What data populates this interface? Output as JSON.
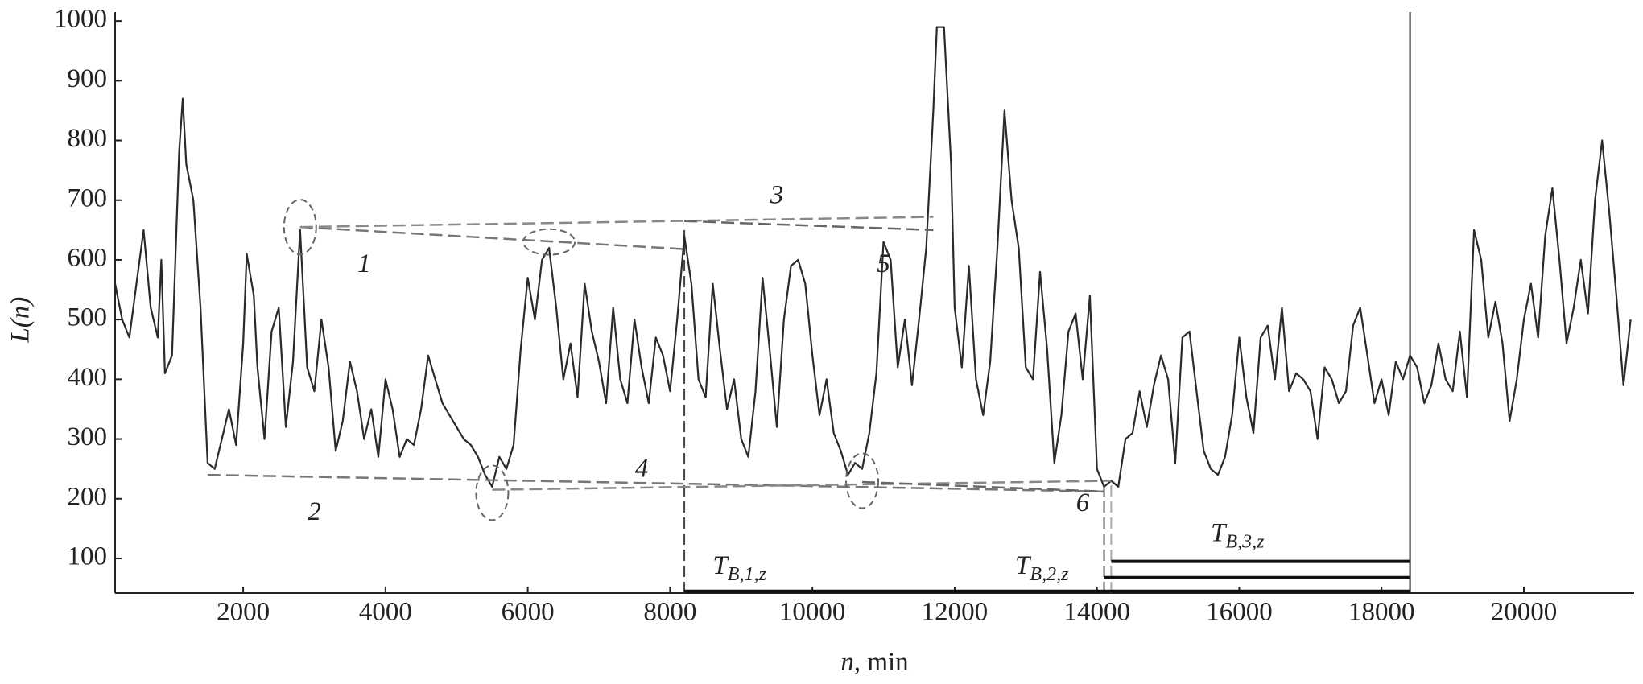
{
  "chart_data": {
    "type": "line",
    "color": "#2a2a2a",
    "xlabel_var": "n",
    "xlabel_unit": ", min",
    "ylabel": "L(n)",
    "xlim": [
      200,
      21550
    ],
    "ylim": [
      42,
      1015
    ],
    "xticks": [
      2000,
      4000,
      6000,
      8000,
      10000,
      12000,
      14000,
      16000,
      18000,
      20000
    ],
    "yticks": [
      100,
      200,
      300,
      400,
      500,
      600,
      700,
      800,
      900,
      1000
    ],
    "grid": false,
    "x": [
      200,
      300,
      400,
      500,
      600,
      700,
      800,
      850,
      900,
      1000,
      1100,
      1150,
      1200,
      1300,
      1400,
      1500,
      1600,
      1700,
      1800,
      1900,
      2000,
      2050,
      2150,
      2200,
      2300,
      2400,
      2500,
      2600,
      2700,
      2800,
      2900,
      3000,
      3100,
      3200,
      3300,
      3400,
      3500,
      3600,
      3700,
      3800,
      3900,
      4000,
      4100,
      4200,
      4300,
      4400,
      4500,
      4600,
      4700,
      4800,
      4900,
      5000,
      5100,
      5200,
      5300,
      5400,
      5500,
      5600,
      5700,
      5800,
      5900,
      6000,
      6100,
      6200,
      6300,
      6400,
      6500,
      6600,
      6700,
      6800,
      6900,
      7000,
      7100,
      7200,
      7300,
      7400,
      7500,
      7600,
      7700,
      7800,
      7900,
      8000,
      8100,
      8200,
      8300,
      8400,
      8500,
      8600,
      8700,
      8800,
      8900,
      9000,
      9100,
      9200,
      9300,
      9400,
      9500,
      9600,
      9700,
      9800,
      9900,
      10000,
      10100,
      10200,
      10300,
      10400,
      10500,
      10600,
      10700,
      10800,
      10900,
      11000,
      11100,
      11200,
      11300,
      11400,
      11500,
      11600,
      11700,
      11750,
      11850,
      11950,
      12000,
      12100,
      12200,
      12300,
      12400,
      12500,
      12600,
      12700,
      12800,
      12900,
      13000,
      13100,
      13200,
      13300,
      13400,
      13500,
      13600,
      13700,
      13800,
      13900,
      14000,
      14100,
      14200,
      14300,
      14400,
      14500,
      14600,
      14700,
      14800,
      14900,
      15000,
      15100,
      15200,
      15300,
      15400,
      15500,
      15600,
      15700,
      15800,
      15900,
      16000,
      16100,
      16200,
      16300,
      16400,
      16500,
      16600,
      16700,
      16800,
      16900,
      17000,
      17100,
      17200,
      17300,
      17400,
      17500,
      17600,
      17700,
      17800,
      17900,
      18000,
      18100,
      18200,
      18300,
      18400,
      18500,
      18600,
      18700,
      18800,
      18900,
      19000,
      19100,
      19200,
      19300,
      19400,
      19500,
      19600,
      19700,
      19800,
      19900,
      20000,
      20100,
      20200,
      20300,
      20400,
      20500,
      20600,
      20700,
      20800,
      20900,
      21000,
      21100,
      21200,
      21300,
      21400,
      21500
    ],
    "values": [
      560,
      500,
      470,
      560,
      650,
      520,
      470,
      600,
      410,
      440,
      780,
      870,
      760,
      700,
      520,
      260,
      250,
      300,
      350,
      290,
      460,
      610,
      540,
      420,
      300,
      480,
      520,
      320,
      430,
      650,
      420,
      380,
      500,
      420,
      280,
      330,
      430,
      380,
      300,
      350,
      270,
      400,
      350,
      270,
      300,
      290,
      350,
      440,
      400,
      360,
      340,
      320,
      300,
      290,
      270,
      240,
      220,
      270,
      250,
      290,
      450,
      570,
      500,
      600,
      620,
      520,
      400,
      460,
      370,
      560,
      480,
      430,
      360,
      520,
      400,
      360,
      500,
      420,
      360,
      470,
      440,
      380,
      500,
      640,
      560,
      400,
      370,
      560,
      450,
      350,
      400,
      300,
      270,
      380,
      570,
      450,
      320,
      500,
      590,
      600,
      560,
      440,
      340,
      400,
      310,
      280,
      240,
      260,
      250,
      310,
      410,
      630,
      600,
      420,
      500,
      390,
      500,
      620,
      850,
      990,
      990,
      760,
      520,
      420,
      590,
      400,
      340,
      430,
      620,
      850,
      700,
      620,
      420,
      400,
      580,
      450,
      260,
      340,
      480,
      510,
      400,
      540,
      250,
      220,
      230,
      220,
      300,
      310,
      380,
      320,
      390,
      440,
      400,
      260,
      470,
      480,
      380,
      280,
      250,
      240,
      270,
      340,
      470,
      370,
      310,
      470,
      490,
      400,
      520,
      380,
      410,
      400,
      380,
      300,
      420,
      400,
      360,
      380,
      490,
      520,
      440,
      360,
      400,
      340,
      430,
      400,
      440,
      420,
      360,
      390,
      460,
      400,
      380,
      480,
      370,
      650,
      600,
      470,
      530,
      460,
      330,
      400,
      500,
      560,
      470,
      640,
      720,
      600,
      460,
      520,
      600,
      510,
      700,
      800,
      680,
      540,
      390,
      500
    ],
    "dashed_lines": [
      {
        "label": "1",
        "x": [
          2800,
          8200
        ],
        "y": [
          655,
          618
        ],
        "label_x": 3700,
        "label_y": 590,
        "color": "#777"
      },
      {
        "label": "3",
        "x": [
          2800,
          11700
        ],
        "y": [
          655,
          672
        ],
        "label_x": 9500,
        "label_y": 705,
        "color": "#888"
      },
      {
        "label": "5",
        "x": [
          8200,
          11700
        ],
        "y": [
          665,
          650
        ],
        "label_x": 11000,
        "label_y": 590,
        "color": "#666"
      },
      {
        "label": "2",
        "x": [
          1500,
          14100
        ],
        "y": [
          240,
          212
        ],
        "label_x": 3000,
        "label_y": 175,
        "color": "#777"
      },
      {
        "label": "4",
        "x": [
          5500,
          14200
        ],
        "y": [
          215,
          230
        ],
        "label_x": 7600,
        "label_y": 247,
        "color": "#888"
      },
      {
        "label": "6",
        "x": [
          10700,
          14100
        ],
        "y": [
          228,
          212
        ],
        "label_x": 13800,
        "label_y": 190,
        "color": "#666"
      }
    ],
    "ellipses": [
      {
        "x": 2800,
        "y": 655,
        "orientation": "vertical"
      },
      {
        "x": 6300,
        "y": 630,
        "orientation": "horizontal"
      },
      {
        "x": 5500,
        "y": 210,
        "orientation": "vertical"
      },
      {
        "x": 10700,
        "y": 230,
        "orientation": "vertical"
      }
    ],
    "verticals": [
      {
        "x": 8200,
        "y": [
          42,
          650
        ],
        "style": "dashed",
        "color": "#444"
      },
      {
        "x": 14100,
        "y": [
          42,
          230
        ],
        "style": "dashed",
        "color": "#555"
      },
      {
        "x": 14200,
        "y": [
          42,
          225
        ],
        "style": "dashed",
        "color": "#aaa"
      },
      {
        "x": 18400,
        "y": [
          42,
          1015
        ],
        "style": "solid",
        "color": "#222"
      }
    ],
    "intervals": [
      {
        "main": "T",
        "sub": "B,1,z",
        "x": [
          8200,
          18400
        ],
        "y": 45,
        "label_x": 8600,
        "label_y": 85
      },
      {
        "main": "T",
        "sub": "B,2,z",
        "x": [
          14100,
          18400
        ],
        "y": 68,
        "label_x": 12850,
        "label_y": 85
      },
      {
        "main": "T",
        "sub": "B,3,z",
        "x": [
          14200,
          18400
        ],
        "y": 95,
        "label_x": 15600,
        "label_y": 140
      }
    ]
  }
}
